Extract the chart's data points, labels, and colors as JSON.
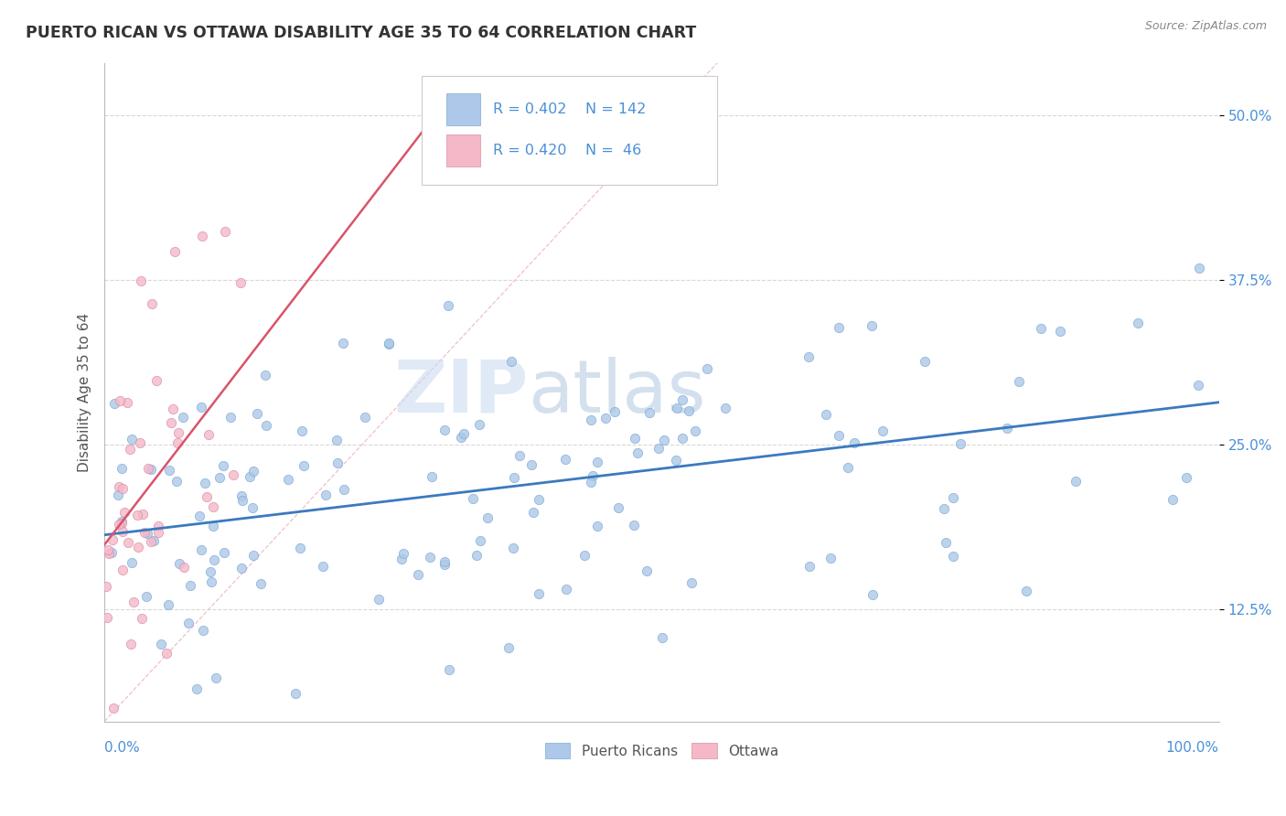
{
  "title": "PUERTO RICAN VS OTTAWA DISABILITY AGE 35 TO 64 CORRELATION CHART",
  "source": "Source: ZipAtlas.com",
  "ylabel": "Disability Age 35 to 64",
  "ytick_vals": [
    0.125,
    0.25,
    0.375,
    0.5
  ],
  "ytick_labels": [
    "12.5%",
    "25.0%",
    "37.5%",
    "50.0%"
  ],
  "xlim": [
    0.0,
    1.0
  ],
  "ylim": [
    0.04,
    0.54
  ],
  "blue_color": "#adc8e8",
  "pink_color": "#f5b8c8",
  "blue_line_color": "#3a7abf",
  "pink_line_color": "#d9546a",
  "diag_line_color": "#f0c0c8",
  "title_color": "#333333",
  "grid_color": "#d8d8d8",
  "watermark_color": "#dce8f5",
  "legend_text_color": "#4a90d9",
  "ytick_color": "#4a90d9",
  "xlabel_color": "#4a90d9",
  "R_blue": 0.402,
  "N_blue": 142,
  "R_pink": 0.42,
  "N_pink": 46,
  "blue_seed": 77,
  "pink_seed": 33
}
